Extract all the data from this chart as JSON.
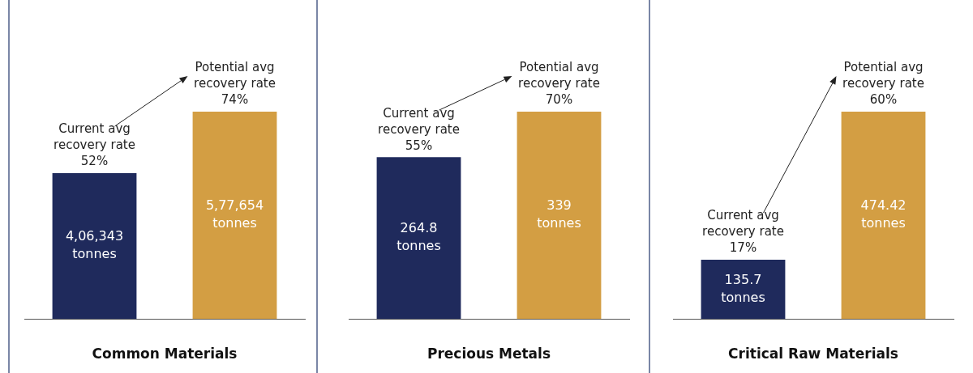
{
  "chart_data": [
    {
      "type": "bar",
      "relative": false,
      "xlabel": "Common Materials",
      "categories": [
        null,
        null
      ],
      "values": [
        406343,
        577654
      ],
      "colors": [
        "#1f2a5c",
        "#d39e43"
      ],
      "value_labels": [
        "4,06,343 tonnes",
        "5,77,654 tonnes"
      ],
      "annotations": [
        "Current avg recovery rate 52%",
        "Potential avg recovery rate 74%"
      ],
      "grid": false,
      "legend": false
    },
    {
      "type": "bar",
      "relative": false,
      "xlabel": "Precious Metals",
      "categories": [
        null,
        null
      ],
      "values": [
        264.8,
        339
      ],
      "colors": [
        "#1f2a5c",
        "#d39e43"
      ],
      "value_labels": [
        "264.8 tonnes",
        "339 tonnes"
      ],
      "annotations": [
        "Current avg recovery rate 55%",
        "Potential avg recovery rate 70%"
      ],
      "grid": false,
      "legend": false
    },
    {
      "type": "bar",
      "relative": false,
      "xlabel": "Critical Raw Materials",
      "categories": [
        null,
        null
      ],
      "values": [
        135.7,
        474.42
      ],
      "colors": [
        "#1f2a5c",
        "#d39e43"
      ],
      "value_labels": [
        "135.7 tonnes",
        "474.42 tonnes"
      ],
      "annotations": [
        "Current avg recovery rate 17%",
        "Potential avg recovery rate 60%"
      ],
      "grid": false,
      "legend": false
    }
  ]
}
